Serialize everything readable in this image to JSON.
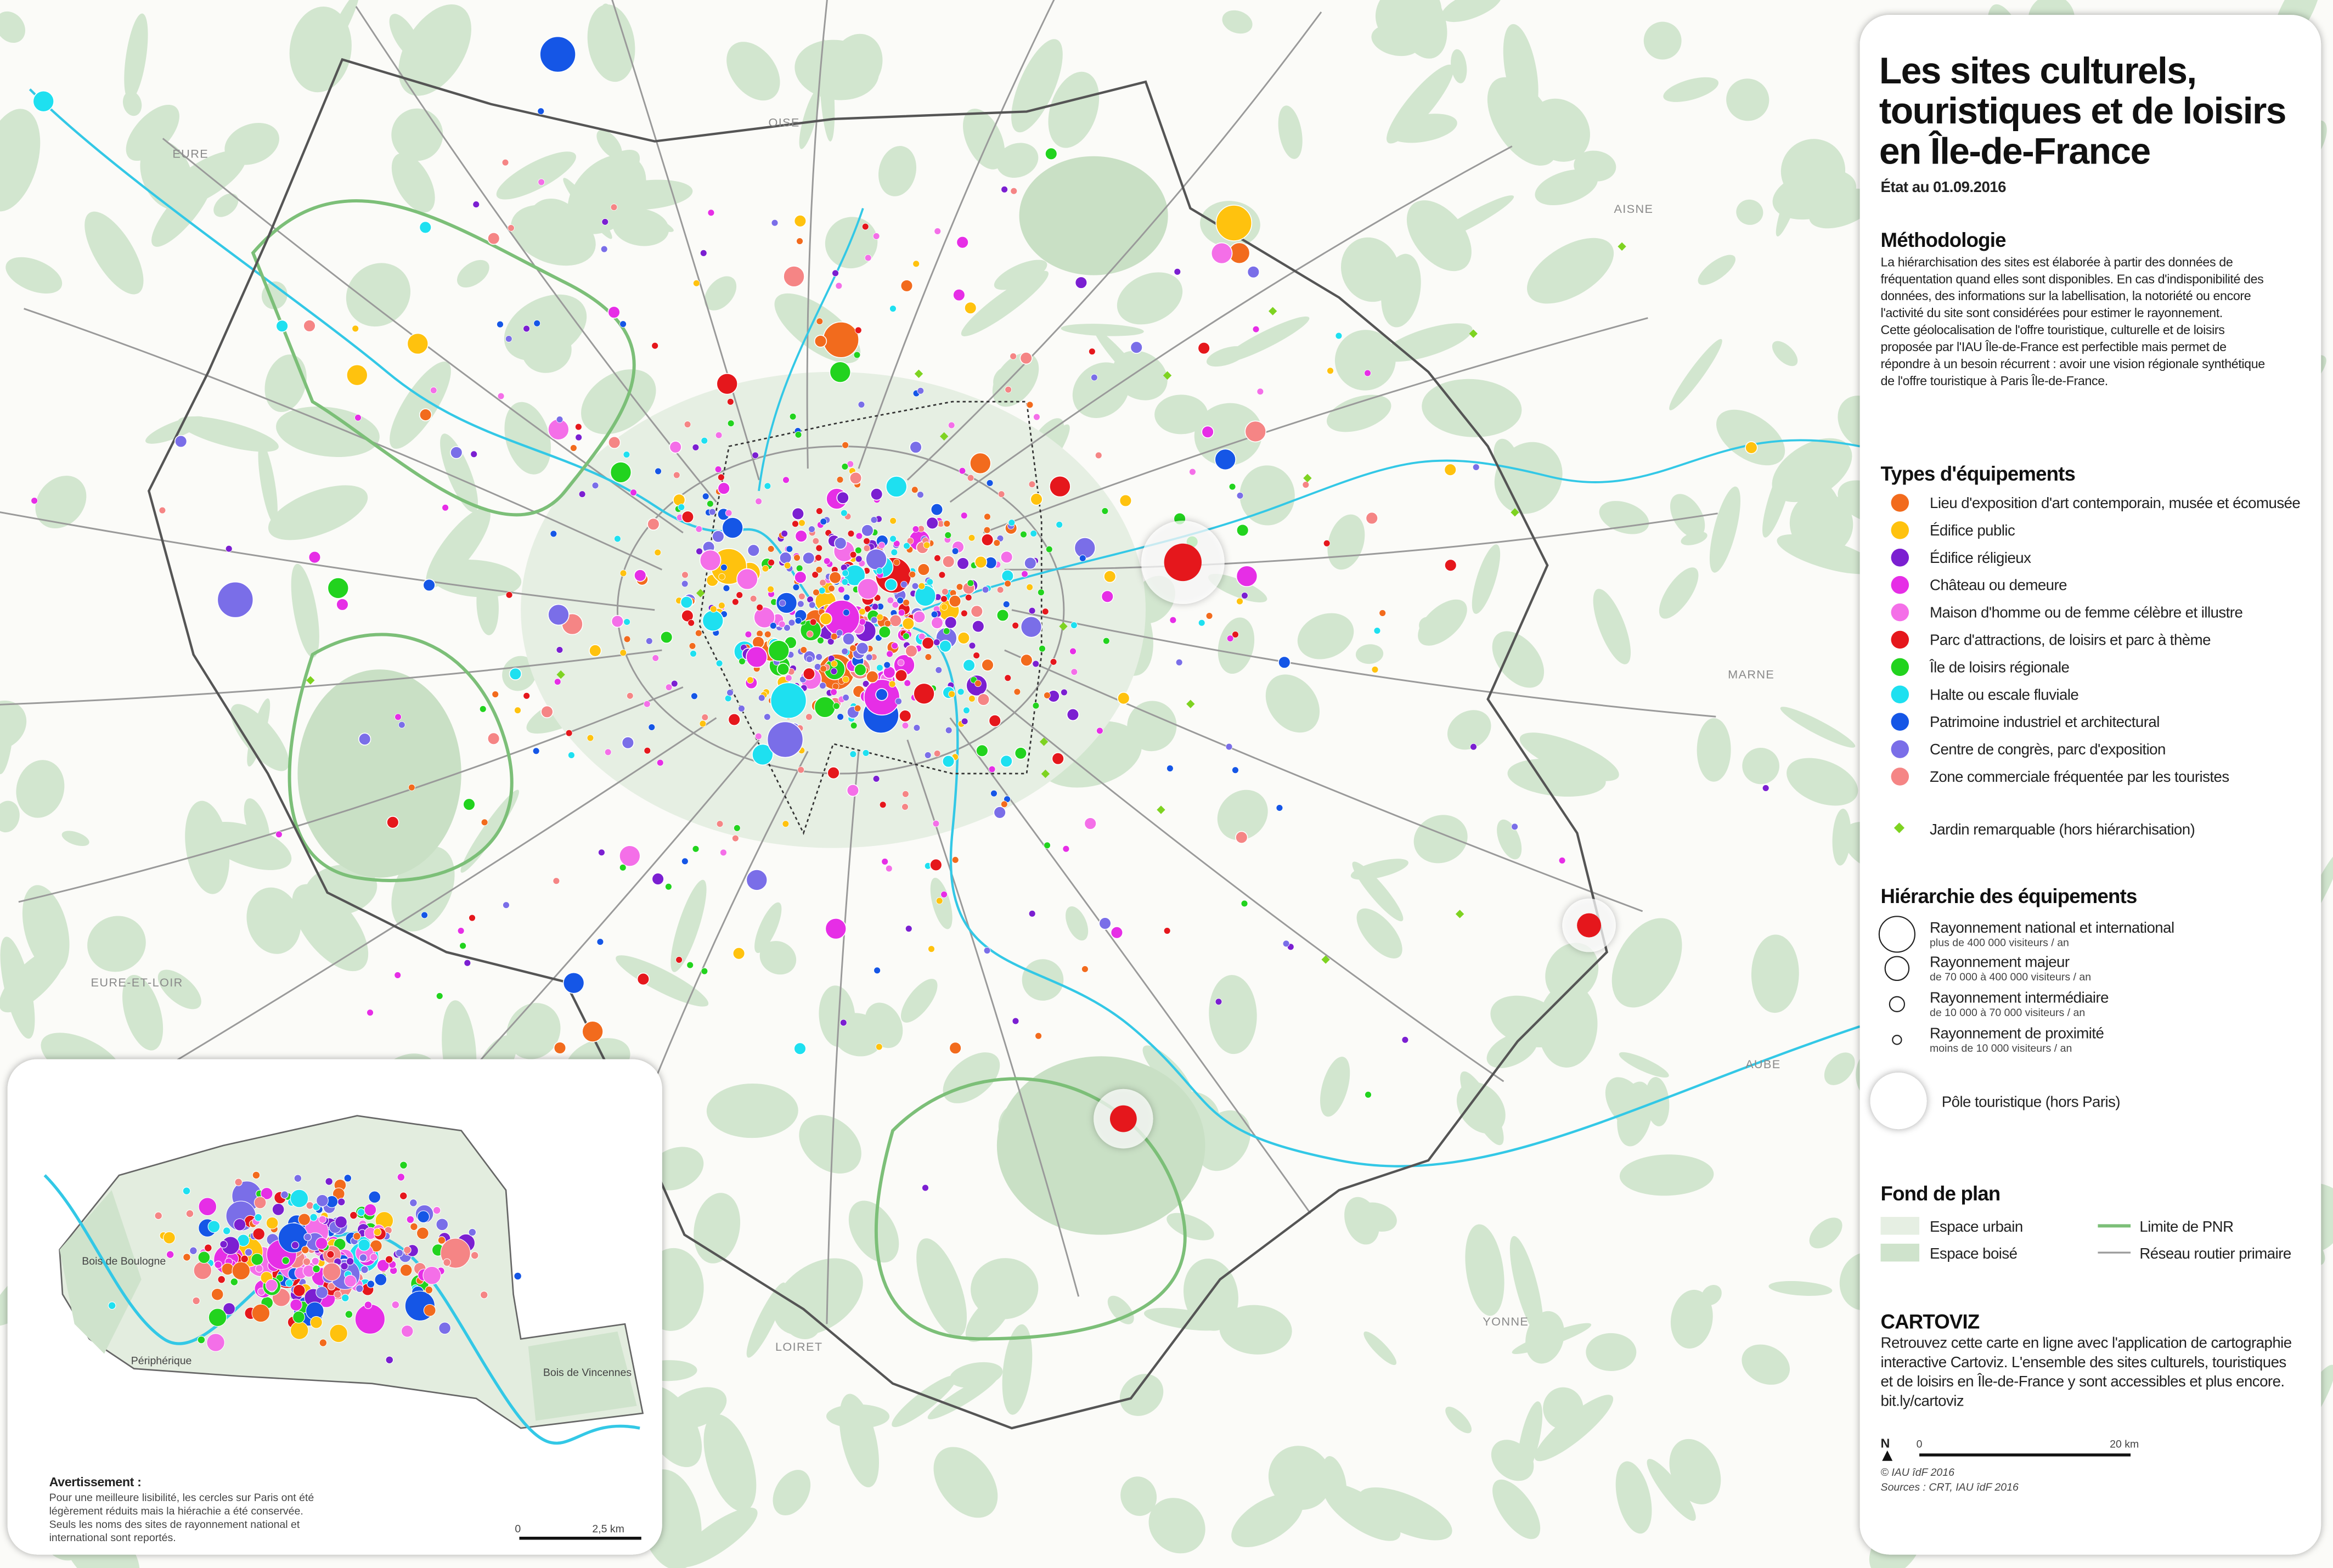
{
  "title": [
    "Les sites culturels,",
    "touristiques et de loisirs",
    "en Île-de-France"
  ],
  "date": "État au 01.09.2016",
  "methodology": {
    "heading": "Méthodologie",
    "lines": [
      "La hiérarchisation des sites est élaborée à partir des données de",
      "fréquentation quand elles sont disponibles. En cas d'indisponibilité des",
      "données, des informations sur la labellisation, la notoriété ou encore",
      "l'activité du site sont considérées pour estimer le rayonnement.",
      "Cette géolocalisation de l'offre touristique, culturelle et de loisirs",
      "proposée par l'IAU Île-de-France est perfectible mais permet de",
      "répondre à un besoin récurrent : avoir une vision régionale synthétique",
      "de l'offre touristique à Paris Île-de-France."
    ]
  },
  "equipment_types": {
    "heading": "Types d'équipements",
    "items": [
      {
        "label": "Lieu d'exposition d'art contemporain, musée et écomusée",
        "color": "#f26b1d"
      },
      {
        "label": "Édifice public",
        "color": "#ffc20e"
      },
      {
        "label": "Édifice réligieux",
        "color": "#7b1fd1"
      },
      {
        "label": "Château ou demeure",
        "color": "#e62ee6"
      },
      {
        "label": "Maison d'homme ou de femme célèbre et illustre",
        "color": "#f46fe8"
      },
      {
        "label": "Parc d'attractions, de loisirs et parc à thème",
        "color": "#e5171c"
      },
      {
        "label": "Île de loisirs régionale",
        "color": "#22d31e"
      },
      {
        "label": "Halte ou escale fluviale",
        "color": "#1ee0f0"
      },
      {
        "label": "Patrimoine industriel et architectural",
        "color": "#1556e6"
      },
      {
        "label": "Centre de congrès, parc d'exposition",
        "color": "#7a6ee8"
      },
      {
        "label": "Zone commerciale fréquentée par les touristes",
        "color": "#f58585"
      }
    ],
    "garden": {
      "label": "Jardin remarquable (hors hiérarchisation)",
      "color": "#7ed321"
    }
  },
  "hierarchy": {
    "heading": "Hiérarchie des équipements",
    "items": [
      {
        "label": "Rayonnement national et international",
        "note": "plus de 400 000 visiteurs / an"
      },
      {
        "label": "Rayonnement majeur",
        "note": "de 70 000 à 400 000 visiteurs / an"
      },
      {
        "label": "Rayonnement intermédiaire",
        "note": "de 10 000 à 70 000 visiteurs / an"
      },
      {
        "label": "Rayonnement de proximité",
        "note": "moins de 10 000 visiteurs / an"
      }
    ],
    "pole": "Pôle touristique (hors Paris)"
  },
  "background": {
    "heading": "Fond de plan",
    "items": [
      "Espace urbain",
      "Espace boisé",
      "Limite de PNR",
      "Réseau routier primaire"
    ]
  },
  "cartoviz": {
    "heading": "CARTOVIZ",
    "lines": [
      "Retrouvez cette carte en ligne avec l'application de cartographie",
      "interactive Cartoviz. L'ensemble des sites culturels, touristiques",
      "et de loisirs en Île-de-France y sont accessibles et plus encore.",
      "bit.ly/cartoviz"
    ]
  },
  "scale": {
    "north": "N",
    "zero": "0",
    "end": "20 km"
  },
  "credits": [
    "© IAU îdF 2016",
    "Sources : CRT, IAU îdF 2016"
  ],
  "regions": [
    "EURE",
    "OISE",
    "AISNE",
    "MARNE",
    "AUBE",
    "YONNE",
    "LOIRET",
    "EURE-ET-LOIR"
  ],
  "inset": {
    "warning_heading": "Avertissement :",
    "warning_lines": [
      "Pour une meilleure lisibilité, les cercles sur Paris ont été",
      "légèrement réduits mais la hiérachie a été conservée.",
      "Seuls les noms des sites de rayonnement national et",
      "international sont reportés."
    ],
    "scale_zero": "0",
    "scale_end": "2,5 km",
    "labels": [
      "Bois de Boulogne",
      "Bois de Vincennes",
      "Périphérique"
    ]
  }
}
